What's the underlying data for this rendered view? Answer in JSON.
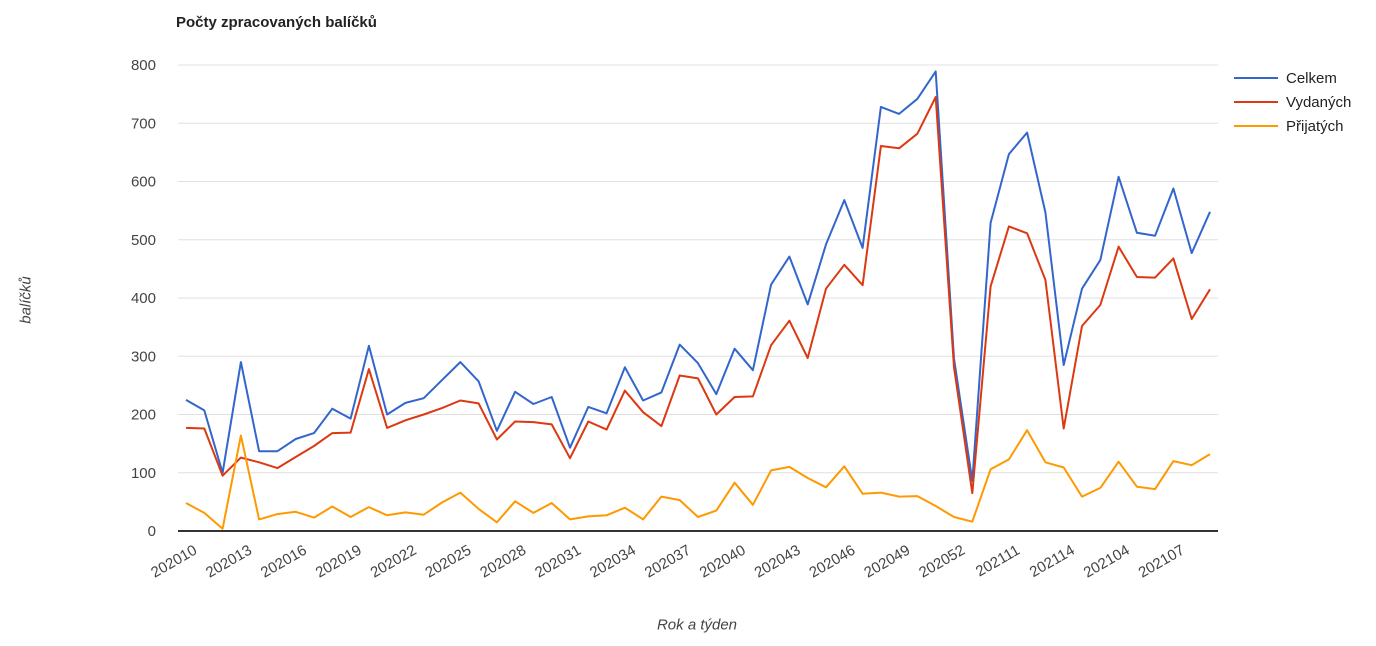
{
  "chart_data": {
    "type": "line",
    "title": "Počty zpracovaných balíčků",
    "xlabel": "Rok a týden",
    "ylabel": "balíčků",
    "ylim": [
      0,
      800
    ],
    "yticks": [
      0,
      100,
      200,
      300,
      400,
      500,
      600,
      700,
      800
    ],
    "grid": true,
    "legend_position": "right",
    "x_tick_labels": [
      "202010",
      "202013",
      "202016",
      "202019",
      "202022",
      "202025",
      "202028",
      "202031",
      "202034",
      "202037",
      "202040",
      "202043",
      "202046",
      "202049",
      "202052",
      "202111",
      "202114",
      "202104",
      "202107"
    ],
    "colors": {
      "Celkem": "#3366cc",
      "Vydaných": "#dc3912",
      "Přijatých": "#ff9900"
    },
    "series": [
      {
        "name": "Celkem",
        "values": [
          225,
          207,
          100,
          290,
          137,
          137,
          158,
          168,
          210,
          193,
          318,
          200,
          220,
          228,
          259,
          290,
          257,
          172,
          239,
          218,
          230,
          143,
          213,
          202,
          281,
          224,
          238,
          320,
          288,
          235,
          313,
          276,
          423,
          471,
          389,
          492,
          568,
          486,
          728,
          716,
          742,
          789,
          296,
          86,
          529,
          647,
          684,
          547,
          285,
          416,
          465,
          608,
          512,
          507,
          588,
          477,
          548
        ]
      },
      {
        "name": "Vydaných",
        "values": [
          177,
          176,
          95,
          126,
          118,
          108,
          127,
          146,
          168,
          169,
          278,
          177,
          190,
          200,
          211,
          224,
          219,
          157,
          188,
          187,
          183,
          125,
          188,
          174,
          241,
          204,
          180,
          267,
          262,
          200,
          230,
          231,
          319,
          361,
          297,
          416,
          457,
          422,
          661,
          657,
          682,
          745,
          281,
          65,
          420,
          523,
          511,
          431,
          176,
          352,
          388,
          488,
          436,
          435,
          468,
          364,
          415
        ]
      },
      {
        "name": "Přijatých",
        "values": [
          48,
          31,
          4,
          164,
          20,
          29,
          33,
          23,
          42,
          24,
          41,
          27,
          32,
          28,
          49,
          66,
          38,
          15,
          51,
          31,
          48,
          20,
          25,
          27,
          40,
          20,
          59,
          53,
          24,
          35,
          83,
          45,
          104,
          110,
          91,
          75,
          111,
          64,
          66,
          59,
          60,
          43,
          24,
          16,
          106,
          123,
          173,
          118,
          109,
          59,
          74,
          119,
          76,
          72,
          120,
          113,
          132
        ]
      }
    ]
  }
}
